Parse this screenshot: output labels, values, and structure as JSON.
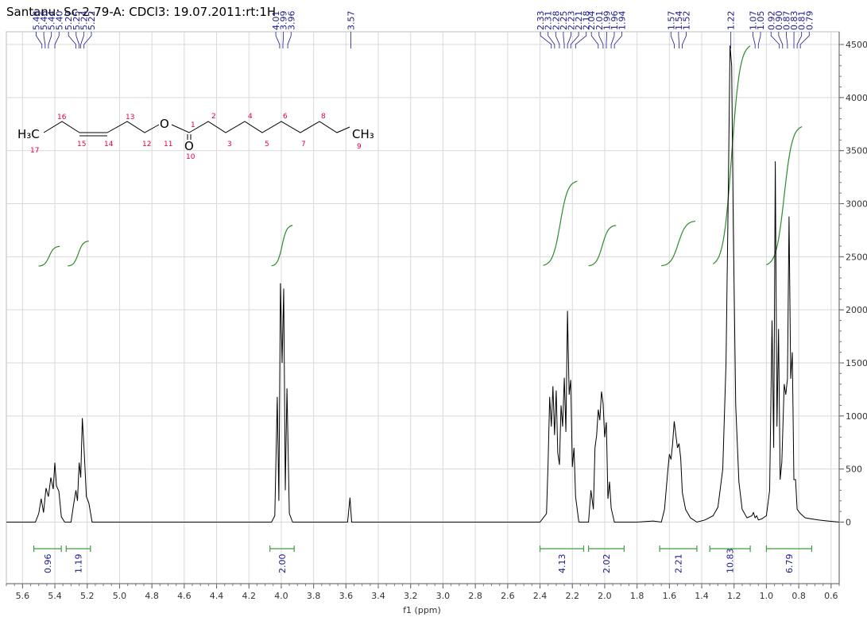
{
  "chart_data": {
    "type": "line",
    "title": "Santanu: Sc-2-79-A: CDCl3: 19.07.2011:rt:1H",
    "xlabel": "f1 (ppm)",
    "ylabel": "",
    "xlim": [
      5.7,
      0.55
    ],
    "ylim": [
      -580,
      4620
    ],
    "xticks": [
      "5.6",
      "5.4",
      "5.2",
      "5.0",
      "4.8",
      "4.6",
      "4.4",
      "4.2",
      "4.0",
      "3.8",
      "3.6",
      "3.4",
      "3.2",
      "3.0",
      "2.8",
      "2.6",
      "2.4",
      "2.2",
      "2.0",
      "1.8",
      "1.6",
      "1.4",
      "1.2",
      "1.0",
      "0.8",
      "0.6"
    ],
    "yticks": [
      0,
      500,
      1000,
      1500,
      2000,
      2500,
      3000,
      3500,
      4000,
      4500
    ],
    "grid": true,
    "series": [
      {
        "values": [
          [
            5.7,
            0
          ],
          [
            5.52,
            0
          ],
          [
            5.5,
            80
          ],
          [
            5.485,
            220
          ],
          [
            5.47,
            90
          ],
          [
            5.455,
            320
          ],
          [
            5.44,
            240
          ],
          [
            5.425,
            420
          ],
          [
            5.41,
            310
          ],
          [
            5.4,
            560
          ],
          [
            5.39,
            340
          ],
          [
            5.375,
            290
          ],
          [
            5.36,
            50
          ],
          [
            5.34,
            0
          ],
          [
            5.3,
            0
          ],
          [
            5.285,
            160
          ],
          [
            5.27,
            300
          ],
          [
            5.26,
            200
          ],
          [
            5.25,
            560
          ],
          [
            5.24,
            420
          ],
          [
            5.23,
            980
          ],
          [
            5.22,
            700
          ],
          [
            5.205,
            240
          ],
          [
            5.19,
            180
          ],
          [
            5.17,
            0
          ],
          [
            4.6,
            0
          ],
          [
            4.2,
            0
          ],
          [
            4.06,
            0
          ],
          [
            4.04,
            60
          ],
          [
            4.025,
            1180
          ],
          [
            4.015,
            200
          ],
          [
            4.005,
            2250
          ],
          [
            3.995,
            1500
          ],
          [
            3.985,
            2200
          ],
          [
            3.975,
            300
          ],
          [
            3.965,
            1260
          ],
          [
            3.95,
            80
          ],
          [
            3.93,
            0
          ],
          [
            3.59,
            0
          ],
          [
            3.575,
            230
          ],
          [
            3.565,
            0
          ],
          [
            2.4,
            0
          ],
          [
            2.36,
            80
          ],
          [
            2.35,
            560
          ],
          [
            2.34,
            1180
          ],
          [
            2.33,
            900
          ],
          [
            2.32,
            1280
          ],
          [
            2.31,
            820
          ],
          [
            2.3,
            1240
          ],
          [
            2.29,
            650
          ],
          [
            2.28,
            540
          ],
          [
            2.27,
            1100
          ],
          [
            2.26,
            900
          ],
          [
            2.25,
            1360
          ],
          [
            2.24,
            850
          ],
          [
            2.23,
            1990
          ],
          [
            2.22,
            1200
          ],
          [
            2.21,
            1340
          ],
          [
            2.2,
            520
          ],
          [
            2.19,
            700
          ],
          [
            2.18,
            240
          ],
          [
            2.16,
            0
          ],
          [
            2.1,
            0
          ],
          [
            2.085,
            300
          ],
          [
            2.07,
            120
          ],
          [
            2.06,
            700
          ],
          [
            2.05,
            820
          ],
          [
            2.04,
            1060
          ],
          [
            2.03,
            960
          ],
          [
            2.02,
            1230
          ],
          [
            2.01,
            1120
          ],
          [
            2.0,
            800
          ],
          [
            1.99,
            940
          ],
          [
            1.98,
            220
          ],
          [
            1.97,
            380
          ],
          [
            1.96,
            130
          ],
          [
            1.94,
            0
          ],
          [
            1.8,
            0
          ],
          [
            1.7,
            10
          ],
          [
            1.65,
            0
          ],
          [
            1.63,
            120
          ],
          [
            1.61,
            480
          ],
          [
            1.6,
            640
          ],
          [
            1.59,
            590
          ],
          [
            1.58,
            740
          ],
          [
            1.57,
            950
          ],
          [
            1.56,
            820
          ],
          [
            1.55,
            700
          ],
          [
            1.54,
            740
          ],
          [
            1.53,
            600
          ],
          [
            1.52,
            280
          ],
          [
            1.5,
            120
          ],
          [
            1.47,
            40
          ],
          [
            1.43,
            0
          ],
          [
            1.38,
            20
          ],
          [
            1.33,
            60
          ],
          [
            1.3,
            140
          ],
          [
            1.27,
            500
          ],
          [
            1.25,
            1500
          ],
          [
            1.235,
            3200
          ],
          [
            1.225,
            4490
          ],
          [
            1.215,
            4300
          ],
          [
            1.205,
            2800
          ],
          [
            1.19,
            1100
          ],
          [
            1.17,
            380
          ],
          [
            1.15,
            120
          ],
          [
            1.12,
            40
          ],
          [
            1.09,
            60
          ],
          [
            1.08,
            90
          ],
          [
            1.07,
            40
          ],
          [
            1.06,
            60
          ],
          [
            1.05,
            20
          ],
          [
            1.03,
            30
          ],
          [
            1.0,
            60
          ],
          [
            0.98,
            300
          ],
          [
            0.965,
            1900
          ],
          [
            0.955,
            700
          ],
          [
            0.945,
            3400
          ],
          [
            0.935,
            900
          ],
          [
            0.925,
            1820
          ],
          [
            0.915,
            400
          ],
          [
            0.905,
            560
          ],
          [
            0.89,
            1300
          ],
          [
            0.88,
            1200
          ],
          [
            0.87,
            1350
          ],
          [
            0.86,
            2880
          ],
          [
            0.85,
            1350
          ],
          [
            0.84,
            1600
          ],
          [
            0.83,
            400
          ],
          [
            0.82,
            400
          ],
          [
            0.81,
            120
          ],
          [
            0.79,
            80
          ],
          [
            0.76,
            40
          ],
          [
            0.72,
            30
          ],
          [
            0.68,
            20
          ],
          [
            0.62,
            10
          ],
          [
            0.55,
            0
          ]
        ]
      }
    ],
    "integration_curves": [
      {
        "from": 5.5,
        "to": 5.37,
        "start": 2410,
        "end": 2600
      },
      {
        "from": 5.32,
        "to": 5.19,
        "start": 2410,
        "end": 2650
      },
      {
        "from": 4.06,
        "to": 3.93,
        "start": 2410,
        "end": 2800
      },
      {
        "from": 2.38,
        "to": 2.17,
        "start": 2410,
        "end": 3220
      },
      {
        "from": 2.1,
        "to": 1.93,
        "start": 2410,
        "end": 2800
      },
      {
        "from": 1.65,
        "to": 1.44,
        "start": 2410,
        "end": 2840
      },
      {
        "from": 1.33,
        "to": 1.1,
        "start": 2410,
        "end": 4510
      },
      {
        "from": 1.0,
        "to": 0.78,
        "start": 2410,
        "end": 3740
      }
    ],
    "integrals": [
      {
        "label": "0.96",
        "from": 5.53,
        "to": 5.36
      },
      {
        "label": "1.19",
        "from": 5.33,
        "to": 5.18
      },
      {
        "label": "2.00",
        "from": 4.07,
        "to": 3.92
      },
      {
        "label": "4.13",
        "from": 2.4,
        "to": 2.13
      },
      {
        "label": "2.02",
        "from": 2.1,
        "to": 1.88
      },
      {
        "label": "2.21",
        "from": 1.66,
        "to": 1.43
      },
      {
        "label": "10.83",
        "from": 1.35,
        "to": 1.1
      },
      {
        "label": "6.79",
        "from": 1.0,
        "to": 0.72
      }
    ],
    "peak_labels": [
      {
        "text": "5.48",
        "ppm": 5.48
      },
      {
        "text": "5.46",
        "ppm": 5.46
      },
      {
        "text": "5.44",
        "ppm": 5.44
      },
      {
        "text": "5.40",
        "ppm": 5.4
      },
      {
        "text": "5.27",
        "ppm": 5.27
      },
      {
        "text": "5.25",
        "ppm": 5.25
      },
      {
        "text": "5.24",
        "ppm": 5.24
      },
      {
        "text": "5.22",
        "ppm": 5.22
      },
      {
        "text": "4.01",
        "ppm": 4.01
      },
      {
        "text": "3.99",
        "ppm": 3.99
      },
      {
        "text": "3.96",
        "ppm": 3.96
      },
      {
        "text": "3.57",
        "ppm": 3.57
      },
      {
        "text": "2.33",
        "ppm": 2.33
      },
      {
        "text": "2.31",
        "ppm": 2.31
      },
      {
        "text": "2.28",
        "ppm": 2.28
      },
      {
        "text": "2.25",
        "ppm": 2.25
      },
      {
        "text": "2.23",
        "ppm": 2.23
      },
      {
        "text": "2.21",
        "ppm": 2.21
      },
      {
        "text": "2.18",
        "ppm": 2.18
      },
      {
        "text": "2.04",
        "ppm": 2.04
      },
      {
        "text": "2.01",
        "ppm": 2.01
      },
      {
        "text": "1.99",
        "ppm": 1.99
      },
      {
        "text": "1.96",
        "ppm": 1.96
      },
      {
        "text": "1.94",
        "ppm": 1.94
      },
      {
        "text": "1.57",
        "ppm": 1.57
      },
      {
        "text": "1.54",
        "ppm": 1.54
      },
      {
        "text": "1.52",
        "ppm": 1.52
      },
      {
        "text": "1.22",
        "ppm": 1.22
      },
      {
        "text": "1.07",
        "ppm": 1.07
      },
      {
        "text": "1.05",
        "ppm": 1.05
      },
      {
        "text": "0.92",
        "ppm": 0.92
      },
      {
        "text": "0.90",
        "ppm": 0.9
      },
      {
        "text": "0.87",
        "ppm": 0.87
      },
      {
        "text": "0.83",
        "ppm": 0.83
      },
      {
        "text": "0.81",
        "ppm": 0.81
      },
      {
        "text": "0.79",
        "ppm": 0.79
      }
    ],
    "colors": {
      "spectrum": "#000000",
      "integral_curve": "#2e8b2e",
      "integral_bar": "#3fa03f",
      "labels": "#1a1a8c",
      "grid": "#d9d9d9",
      "atom_numbers": "#e0003c"
    }
  },
  "structure": {
    "atoms": {
      "ch3_left": "H₃C",
      "oxygen_ether": "O",
      "oxygen_carbonyl": "O",
      "ch3_right": "CH₃"
    },
    "numbers": [
      "17",
      "16",
      "15",
      "14",
      "13",
      "12",
      "11",
      "1",
      "10",
      "2",
      "3",
      "4",
      "5",
      "6",
      "7",
      "8",
      "9"
    ]
  }
}
